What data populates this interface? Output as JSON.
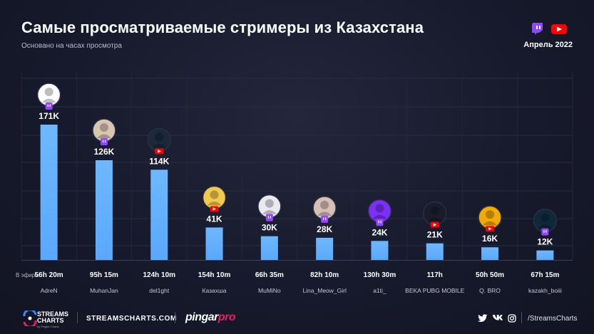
{
  "header": {
    "title": "Самые просматриваемые стримеры из Казахстана",
    "subtitle": "Основано на часах просмотра",
    "date": "Апрель 2022"
  },
  "chart_data": {
    "type": "bar",
    "categories": [
      "AdreN",
      "MuhanJan",
      "del1ght",
      "Казахша",
      "MuMiNo",
      "Lina_Meow_Girl",
      "a1ti_",
      "BEKA PUBG MOBILE",
      "Q. BRO",
      "kazakh_boiii"
    ],
    "values": [
      171,
      126,
      114,
      41,
      30,
      28,
      24,
      21,
      16,
      12
    ],
    "value_labels": [
      "171K",
      "126K",
      "114K",
      "41K",
      "30K",
      "28K",
      "24K",
      "21K",
      "16K",
      "12K"
    ],
    "airtime_label": "В эфире:",
    "airtime": [
      "56h 20m",
      "95h 15m",
      "124h 10m",
      "154h 10m",
      "66h 35m",
      "82h 10m",
      "130h 30m",
      "117h",
      "50h 50m",
      "67h 15m"
    ],
    "platform": [
      "twitch",
      "twitch",
      "youtube",
      "youtube",
      "twitch",
      "twitch",
      "twitch",
      "youtube",
      "youtube",
      "twitch"
    ],
    "ylim": [
      0,
      180
    ],
    "grid": true,
    "bar_color": "#5aa8ff",
    "bar_color_top": "#6db8ff"
  },
  "colors": {
    "twitch": "#9146ff",
    "youtube": "#ff0000",
    "background": "#141627"
  },
  "footer": {
    "logo_line1": "STREAMS",
    "logo_line2": "CHARTS",
    "logo_sub": "by Pingler Charts",
    "site": "STREAMSCHARTS.COM",
    "pingar": "pingar",
    "pingar_pro": "pro",
    "handle": "/StreamsCharts",
    "social_icons": [
      "twitter-icon",
      "vk-icon",
      "instagram-icon"
    ]
  }
}
